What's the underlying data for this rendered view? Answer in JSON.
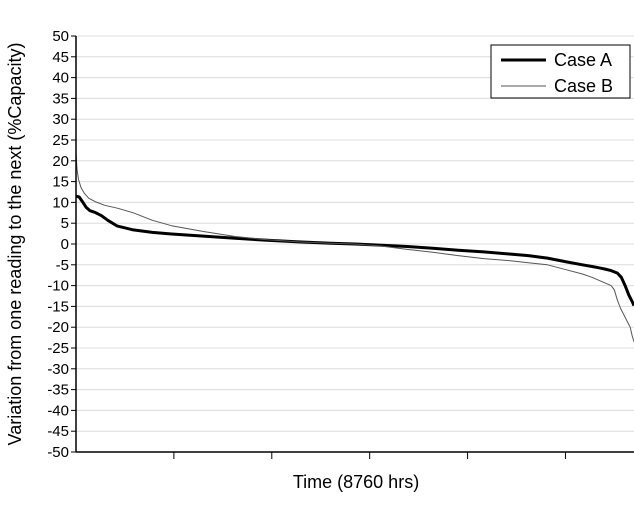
{
  "chart_data": {
    "type": "line",
    "title": "",
    "xlabel": "Time (8760 hrs)",
    "ylabel": "Variation from one reading to the next (%Capacity)",
    "xlim": [
      0,
      8760
    ],
    "ylim": [
      -50,
      50
    ],
    "y_ticks": [
      50,
      45,
      40,
      35,
      30,
      25,
      20,
      15,
      10,
      5,
      0,
      -5,
      -10,
      -15,
      -20,
      -25,
      -30,
      -35,
      -40,
      -45,
      -50
    ],
    "x_tick_labels": [],
    "grid": "horizontal",
    "legend_position": "top-right",
    "series": [
      {
        "name": "Case A",
        "color": "#000000",
        "line": "thick",
        "x": [
          0,
          50,
          100,
          160,
          220,
          300,
          400,
          500,
          650,
          900,
          1200,
          1500,
          2000,
          2500,
          3000,
          3500,
          4000,
          4380,
          4800,
          5200,
          5600,
          6000,
          6400,
          6800,
          7100,
          7400,
          7700,
          7950,
          8100,
          8200,
          8300,
          8400,
          8500,
          8560,
          8620,
          8680,
          8730,
          8760
        ],
        "values": [
          11.5,
          11.3,
          10.2,
          8.8,
          8.0,
          7.6,
          6.8,
          5.7,
          4.3,
          3.4,
          2.8,
          2.4,
          1.9,
          1.4,
          0.9,
          0.5,
          0.2,
          0.0,
          -0.3,
          -0.6,
          -1.0,
          -1.5,
          -1.9,
          -2.4,
          -2.8,
          -3.4,
          -4.3,
          -5.0,
          -5.4,
          -5.7,
          -6.0,
          -6.4,
          -7.0,
          -8.0,
          -10.0,
          -12.3,
          -13.8,
          -14.8
        ]
      },
      {
        "name": "Case B",
        "color": "#555555",
        "line": "thin",
        "x": [
          0,
          15,
          40,
          80,
          130,
          200,
          300,
          450,
          650,
          900,
          1200,
          1500,
          2000,
          2500,
          3000,
          3500,
          4000,
          4380,
          4800,
          5200,
          5600,
          6000,
          6400,
          6800,
          7100,
          7400,
          7700,
          7950,
          8100,
          8250,
          8400,
          8450,
          8500,
          8550,
          8600,
          8650,
          8700,
          8730,
          8760
        ],
        "values": [
          22.0,
          18.0,
          15.5,
          13.5,
          12.2,
          11.0,
          10.2,
          9.3,
          8.6,
          7.5,
          5.7,
          4.4,
          3.0,
          1.8,
          1.0,
          0.5,
          0.2,
          0.0,
          -0.5,
          -1.3,
          -2.0,
          -2.8,
          -3.5,
          -4.0,
          -4.5,
          -5.0,
          -6.2,
          -7.2,
          -8.0,
          -9.0,
          -10.0,
          -11.0,
          -13.5,
          -15.5,
          -17.0,
          -18.5,
          -20.0,
          -22.0,
          -23.5
        ]
      }
    ]
  }
}
